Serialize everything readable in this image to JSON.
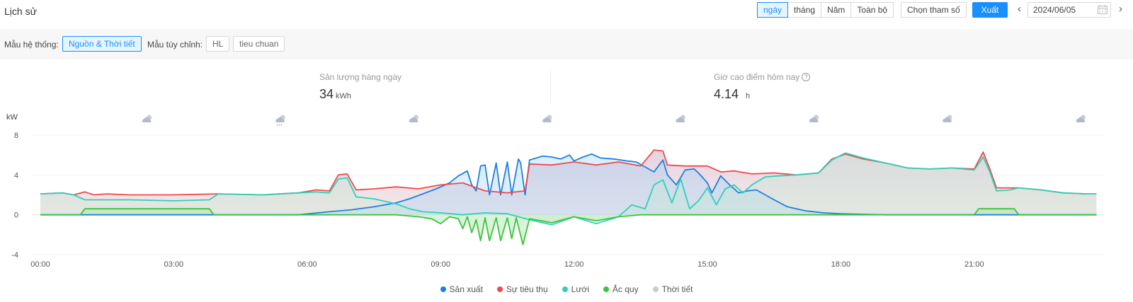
{
  "header": {
    "title": "Lịch sử",
    "range_tabs": [
      "ngày",
      "tháng",
      "Năm",
      "Toàn bộ"
    ],
    "active_range": "ngày",
    "select_params_label": "Chọn tham số",
    "export_label": "Xuất",
    "date_value": "2024/06/05"
  },
  "filters": {
    "system_template_label": "Mẫu hệ thống:",
    "system_template_value": "Nguồn & Thời tiết",
    "custom_template_label": "Mẫu tùy chỉnh:",
    "custom_templates": [
      "HL",
      "tieu chuan"
    ]
  },
  "stats": {
    "daily_yield_label": "Sản lượng hàng ngày",
    "daily_yield_value": "34",
    "daily_yield_unit": "kWh",
    "peak_hours_label": "Giờ cao điểm hôm nay",
    "peak_hours_value": "4.14",
    "peak_hours_unit": "h"
  },
  "colors": {
    "accent": "#1890ff",
    "production": "#1f7fe0",
    "consumption": "#ef4b4b",
    "grid": "#2ed1b8",
    "battery": "#3cc43c",
    "weather": "#c5cad6"
  },
  "chart_data": {
    "type": "line",
    "ylabel": "kW",
    "ylim": [
      -4,
      8
    ],
    "yticks": [
      8,
      4,
      0,
      -4
    ],
    "xticks": [
      "00:00",
      "03:00",
      "06:00",
      "09:00",
      "12:00",
      "15:00",
      "18:00",
      "21:00"
    ],
    "weather_icons": [
      {
        "hour": 2.4,
        "icon": "cloudy-sun-icon"
      },
      {
        "hour": 5.4,
        "icon": "rain-icon"
      },
      {
        "hour": 8.4,
        "icon": "cloudy-sun-icon"
      },
      {
        "hour": 11.4,
        "icon": "cloudy-sun-icon"
      },
      {
        "hour": 14.4,
        "icon": "cloudy-sun-icon"
      },
      {
        "hour": 17.4,
        "icon": "cloudy-sun-icon"
      },
      {
        "hour": 20.4,
        "icon": "cloudy-sun-icon"
      },
      {
        "hour": 23.4,
        "icon": "cloudy-sun-icon"
      }
    ],
    "series": [
      {
        "name": "Sản xuất",
        "color": "#1f7fe0",
        "points": [
          [
            0,
            0
          ],
          [
            5.8,
            0
          ],
          [
            6.5,
            0.3
          ],
          [
            7.0,
            0.5
          ],
          [
            7.5,
            0.8
          ],
          [
            8.0,
            1.2
          ],
          [
            8.3,
            1.6
          ],
          [
            8.6,
            2.1
          ],
          [
            8.9,
            2.6
          ],
          [
            9.2,
            3.2
          ],
          [
            9.4,
            3.9
          ],
          [
            9.6,
            4.4
          ],
          [
            9.7,
            3.0
          ],
          [
            9.8,
            2.4
          ],
          [
            9.9,
            4.9
          ],
          [
            10.0,
            5.0
          ],
          [
            10.1,
            2.0
          ],
          [
            10.25,
            5.2
          ],
          [
            10.35,
            2.0
          ],
          [
            10.5,
            5.3
          ],
          [
            10.6,
            2.0
          ],
          [
            10.75,
            5.6
          ],
          [
            10.8,
            5.2
          ],
          [
            10.9,
            2.0
          ],
          [
            11.0,
            5.5
          ],
          [
            11.3,
            5.9
          ],
          [
            11.5,
            5.8
          ],
          [
            11.7,
            5.6
          ],
          [
            11.9,
            6.0
          ],
          [
            12.0,
            5.4
          ],
          [
            12.2,
            5.8
          ],
          [
            12.4,
            6.1
          ],
          [
            12.6,
            5.7
          ],
          [
            12.9,
            5.6
          ],
          [
            13.2,
            5.4
          ],
          [
            13.4,
            5.3
          ],
          [
            13.6,
            4.8
          ],
          [
            13.8,
            4.3
          ],
          [
            14.0,
            5.5
          ],
          [
            14.1,
            4.0
          ],
          [
            14.3,
            3.0
          ],
          [
            14.5,
            4.5
          ],
          [
            14.7,
            4.6
          ],
          [
            14.8,
            4.2
          ],
          [
            15.0,
            3.2
          ],
          [
            15.1,
            2.2
          ],
          [
            15.3,
            3.9
          ],
          [
            15.5,
            3.0
          ],
          [
            15.7,
            2.2
          ],
          [
            15.9,
            2.4
          ],
          [
            16.1,
            2.5
          ],
          [
            16.3,
            2.0
          ],
          [
            16.5,
            1.5
          ],
          [
            16.8,
            0.8
          ],
          [
            17.2,
            0.4
          ],
          [
            17.6,
            0.2
          ],
          [
            18.0,
            0.1
          ],
          [
            18.5,
            0.05
          ],
          [
            19.0,
            0
          ],
          [
            23.75,
            0
          ]
        ]
      },
      {
        "name": "Sự tiêu thụ",
        "color": "#ef4b4b",
        "points": [
          [
            0,
            2.1
          ],
          [
            0.5,
            2.2
          ],
          [
            0.75,
            2.0
          ],
          [
            1.0,
            2.3
          ],
          [
            1.2,
            2.0
          ],
          [
            1.5,
            2.1
          ],
          [
            2,
            2.0
          ],
          [
            3,
            2.0
          ],
          [
            4,
            2.1
          ],
          [
            5,
            2.0
          ],
          [
            5.8,
            2.2
          ],
          [
            6.2,
            2.5
          ],
          [
            6.5,
            2.4
          ],
          [
            6.7,
            4.0
          ],
          [
            6.9,
            4.1
          ],
          [
            7.1,
            2.5
          ],
          [
            7.5,
            2.6
          ],
          [
            8.0,
            2.8
          ],
          [
            8.5,
            2.6
          ],
          [
            9.0,
            3.0
          ],
          [
            9.5,
            3.2
          ],
          [
            10.0,
            2.4
          ],
          [
            10.5,
            2.2
          ],
          [
            10.9,
            2.4
          ],
          [
            11.0,
            5.1
          ],
          [
            11.5,
            5.0
          ],
          [
            12.0,
            5.3
          ],
          [
            12.5,
            5.0
          ],
          [
            13.0,
            5.3
          ],
          [
            13.5,
            4.9
          ],
          [
            13.8,
            6.5
          ],
          [
            14.0,
            6.4
          ],
          [
            14.1,
            5.0
          ],
          [
            14.5,
            4.9
          ],
          [
            15.0,
            4.9
          ],
          [
            15.3,
            4.3
          ],
          [
            15.6,
            4.4
          ],
          [
            16.0,
            4.1
          ],
          [
            16.5,
            4.2
          ],
          [
            17.0,
            4.0
          ],
          [
            17.5,
            4.2
          ],
          [
            17.8,
            5.6
          ],
          [
            18.1,
            6.1
          ],
          [
            18.5,
            5.6
          ],
          [
            19.0,
            5.2
          ],
          [
            19.5,
            4.7
          ],
          [
            20.0,
            4.6
          ],
          [
            20.5,
            4.7
          ],
          [
            21.0,
            4.6
          ],
          [
            21.2,
            6.3
          ],
          [
            21.35,
            4.6
          ],
          [
            21.5,
            2.7
          ],
          [
            22.0,
            2.7
          ],
          [
            22.5,
            2.5
          ],
          [
            23.0,
            2.2
          ],
          [
            23.5,
            2.1
          ],
          [
            23.75,
            2.1
          ]
        ]
      },
      {
        "name": "Lưới",
        "color": "#2ed1b8",
        "points": [
          [
            0,
            2.1
          ],
          [
            0.5,
            2.2
          ],
          [
            0.75,
            2.0
          ],
          [
            1.0,
            1.5
          ],
          [
            2.0,
            1.5
          ],
          [
            3.0,
            1.4
          ],
          [
            3.8,
            1.5
          ],
          [
            4.0,
            2.1
          ],
          [
            5,
            2.0
          ],
          [
            5.8,
            2.2
          ],
          [
            6.2,
            2.3
          ],
          [
            6.5,
            2.2
          ],
          [
            6.7,
            3.6
          ],
          [
            6.9,
            3.7
          ],
          [
            7.1,
            1.8
          ],
          [
            7.5,
            1.6
          ],
          [
            8.0,
            1.1
          ],
          [
            8.3,
            0.6
          ],
          [
            8.6,
            0.3
          ],
          [
            9.0,
            0.2
          ],
          [
            9.5,
            0
          ],
          [
            10.0,
            0.2
          ],
          [
            10.5,
            0.1
          ],
          [
            11.0,
            -0.5
          ],
          [
            11.5,
            -1.0
          ],
          [
            12.0,
            -0.2
          ],
          [
            12.5,
            -0.9
          ],
          [
            13.0,
            -0.2
          ],
          [
            13.3,
            1.0
          ],
          [
            13.6,
            0.6
          ],
          [
            13.8,
            3.0
          ],
          [
            14.0,
            3.5
          ],
          [
            14.2,
            1.2
          ],
          [
            14.4,
            3.6
          ],
          [
            14.6,
            0.6
          ],
          [
            14.8,
            1.4
          ],
          [
            15.0,
            2.7
          ],
          [
            15.2,
            1.0
          ],
          [
            15.4,
            2.6
          ],
          [
            15.6,
            3.0
          ],
          [
            15.8,
            2.2
          ],
          [
            16.0,
            3.0
          ],
          [
            16.3,
            3.8
          ],
          [
            16.6,
            3.9
          ],
          [
            17.0,
            4.0
          ],
          [
            17.5,
            4.2
          ],
          [
            17.8,
            5.5
          ],
          [
            18.1,
            6.2
          ],
          [
            18.5,
            5.7
          ],
          [
            19.0,
            5.2
          ],
          [
            19.5,
            4.7
          ],
          [
            20.0,
            4.6
          ],
          [
            20.5,
            4.7
          ],
          [
            21.0,
            4.5
          ],
          [
            21.2,
            5.8
          ],
          [
            21.35,
            4.3
          ],
          [
            21.5,
            2.4
          ],
          [
            21.8,
            2.5
          ],
          [
            22.0,
            2.7
          ],
          [
            22.5,
            2.5
          ],
          [
            23.0,
            2.2
          ],
          [
            23.5,
            2.1
          ],
          [
            23.75,
            2.1
          ]
        ]
      },
      {
        "name": "Ắc quy",
        "color": "#3cc43c",
        "points": [
          [
            0,
            0
          ],
          [
            0.9,
            0
          ],
          [
            1.0,
            0.6
          ],
          [
            3.8,
            0.6
          ],
          [
            3.9,
            0
          ],
          [
            8.0,
            0
          ],
          [
            8.5,
            -0.2
          ],
          [
            8.8,
            -0.4
          ],
          [
            9.0,
            -0.9
          ],
          [
            9.2,
            -0.2
          ],
          [
            9.4,
            -0.4
          ],
          [
            9.5,
            -1.4
          ],
          [
            9.6,
            -0.2
          ],
          [
            9.7,
            -1.8
          ],
          [
            9.8,
            -0.5
          ],
          [
            9.9,
            -2.6
          ],
          [
            10.0,
            -0.3
          ],
          [
            10.1,
            -2.6
          ],
          [
            10.25,
            -0.3
          ],
          [
            10.35,
            -2.6
          ],
          [
            10.5,
            -0.3
          ],
          [
            10.6,
            -2.4
          ],
          [
            10.7,
            -0.3
          ],
          [
            10.85,
            -3.0
          ],
          [
            11.0,
            -0.4
          ],
          [
            11.5,
            -0.8
          ],
          [
            12.0,
            -0.2
          ],
          [
            12.5,
            -0.6
          ],
          [
            13.0,
            -0.2
          ],
          [
            13.5,
            0
          ],
          [
            21.0,
            0
          ],
          [
            21.1,
            0.6
          ],
          [
            21.9,
            0.6
          ],
          [
            22.0,
            0
          ],
          [
            23.75,
            0
          ]
        ]
      },
      {
        "name": "Thời tiết",
        "color": "#c5cad6",
        "points": []
      }
    ]
  }
}
